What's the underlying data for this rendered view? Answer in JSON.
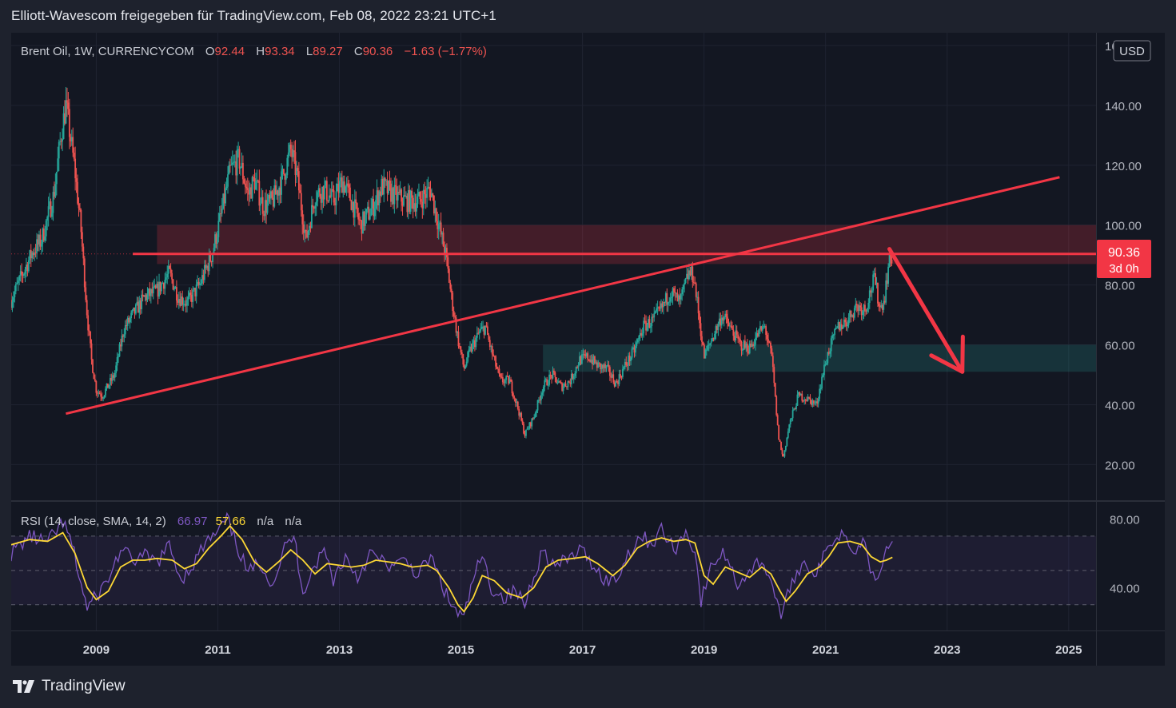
{
  "caption": "Elliott-Wavescom freigegeben für TradingView.com, Feb 08, 2022 23:21 UTC+1",
  "brand": {
    "name": "TradingView",
    "icon": "tradingview-logo-icon"
  },
  "legend": {
    "symbol": "Brent Oil, 1W, CURRENCYCOM",
    "o_label": "O",
    "o_value": "92.44",
    "h_label": "H",
    "h_value": "93.34",
    "l_label": "L",
    "l_value": "89.27",
    "c_label": "C",
    "c_value": "90.36",
    "change": "−1.63 (−1.77%)"
  },
  "currency_button": "USD",
  "price_badge": {
    "price": "90.36",
    "countdown": "3d 0h",
    "value": 90.36
  },
  "rsi_legend": {
    "name": "RSI (14, close, SMA, 14, 2)",
    "rsi_value": "66.97",
    "sma_value": "57.66",
    "extra1": "n/a",
    "extra2": "n/a"
  },
  "colors": {
    "background": "#131722",
    "up": "#26a69a",
    "down": "#ef5350",
    "drawing": "#f23645",
    "rsi": "#7e57c2",
    "rsi_sma": "#fdd835",
    "resistance_zone": "#f23645",
    "support_zone": "#26a69a"
  },
  "chart_data": [
    {
      "type": "candlestick",
      "title": "Brent Oil, 1W, CURRENCYCOM",
      "x_range": [
        2007.6,
        2025.45
      ],
      "ylim": [
        0,
        165
      ],
      "y_ticks": [
        "20.00",
        "40.00",
        "60.00",
        "80.00",
        "100.00",
        "120.00",
        "140.00",
        "160.00"
      ],
      "y_tick_values": [
        20,
        40,
        60,
        80,
        100,
        120,
        140,
        160
      ],
      "x_ticks": [
        "2009",
        "2011",
        "2013",
        "2015",
        "2017",
        "2019",
        "2021",
        "2023",
        "2025"
      ],
      "x_tick_values": [
        2009,
        2011,
        2013,
        2015,
        2017,
        2019,
        2021,
        2023,
        2025
      ],
      "close_path": [
        [
          2007.6,
          75
        ],
        [
          2007.75,
          82
        ],
        [
          2007.95,
          91
        ],
        [
          2008.1,
          95
        ],
        [
          2008.3,
          110
        ],
        [
          2008.42,
          130
        ],
        [
          2008.5,
          140
        ],
        [
          2008.55,
          133
        ],
        [
          2008.65,
          118
        ],
        [
          2008.75,
          98
        ],
        [
          2008.85,
          70
        ],
        [
          2008.92,
          55
        ],
        [
          2009.0,
          45
        ],
        [
          2009.1,
          43
        ],
        [
          2009.3,
          50
        ],
        [
          2009.45,
          65
        ],
        [
          2009.6,
          70
        ],
        [
          2009.8,
          76
        ],
        [
          2010.0,
          78
        ],
        [
          2010.2,
          84
        ],
        [
          2010.35,
          76
        ],
        [
          2010.5,
          74
        ],
        [
          2010.7,
          80
        ],
        [
          2010.9,
          90
        ],
        [
          2011.05,
          103
        ],
        [
          2011.2,
          118
        ],
        [
          2011.35,
          122
        ],
        [
          2011.5,
          110
        ],
        [
          2011.6,
          115
        ],
        [
          2011.75,
          106
        ],
        [
          2011.9,
          108
        ],
        [
          2012.05,
          115
        ],
        [
          2012.2,
          125
        ],
        [
          2012.3,
          117
        ],
        [
          2012.45,
          95
        ],
        [
          2012.6,
          110
        ],
        [
          2012.75,
          112
        ],
        [
          2012.9,
          108
        ],
        [
          2013.05,
          115
        ],
        [
          2013.2,
          108
        ],
        [
          2013.35,
          100
        ],
        [
          2013.55,
          106
        ],
        [
          2013.7,
          113
        ],
        [
          2013.9,
          110
        ],
        [
          2014.1,
          108
        ],
        [
          2014.3,
          108
        ],
        [
          2014.5,
          112
        ],
        [
          2014.6,
          103
        ],
        [
          2014.75,
          90
        ],
        [
          2014.85,
          75
        ],
        [
          2014.95,
          62
        ],
        [
          2015.05,
          52
        ],
        [
          2015.15,
          58
        ],
        [
          2015.3,
          64
        ],
        [
          2015.4,
          66
        ],
        [
          2015.5,
          58
        ],
        [
          2015.65,
          48
        ],
        [
          2015.8,
          48
        ],
        [
          2015.95,
          38
        ],
        [
          2016.05,
          30
        ],
        [
          2016.2,
          36
        ],
        [
          2016.35,
          46
        ],
        [
          2016.5,
          50
        ],
        [
          2016.65,
          46
        ],
        [
          2016.8,
          48
        ],
        [
          2016.95,
          55
        ],
        [
          2017.1,
          56
        ],
        [
          2017.25,
          53
        ],
        [
          2017.4,
          52
        ],
        [
          2017.55,
          47
        ],
        [
          2017.7,
          53
        ],
        [
          2017.85,
          58
        ],
        [
          2018.0,
          66
        ],
        [
          2018.15,
          68
        ],
        [
          2018.3,
          72
        ],
        [
          2018.45,
          78
        ],
        [
          2018.6,
          74
        ],
        [
          2018.75,
          84
        ],
        [
          2018.83,
          83
        ],
        [
          2018.9,
          72
        ],
        [
          2019.0,
          56
        ],
        [
          2019.15,
          63
        ],
        [
          2019.3,
          70
        ],
        [
          2019.45,
          65
        ],
        [
          2019.6,
          60
        ],
        [
          2019.75,
          59
        ],
        [
          2019.9,
          64
        ],
        [
          2020.0,
          66
        ],
        [
          2020.12,
          55
        ],
        [
          2020.22,
          30
        ],
        [
          2020.3,
          22
        ],
        [
          2020.4,
          33
        ],
        [
          2020.55,
          43
        ],
        [
          2020.7,
          42
        ],
        [
          2020.85,
          40
        ],
        [
          2020.95,
          50
        ],
        [
          2021.05,
          58
        ],
        [
          2021.2,
          66
        ],
        [
          2021.35,
          68
        ],
        [
          2021.5,
          73
        ],
        [
          2021.65,
          72
        ],
        [
          2021.8,
          82
        ],
        [
          2021.9,
          72
        ],
        [
          2021.97,
          76
        ],
        [
          2022.03,
          86
        ],
        [
          2022.1,
          90.36
        ]
      ],
      "horizontal_line": {
        "price": 90.36,
        "from": 2009.6,
        "to": 2025.45
      },
      "resistance_zone": {
        "from": 2010.0,
        "to": 2025.45,
        "low": 87,
        "high": 100
      },
      "support_zone": {
        "from": 2016.35,
        "to": 2025.45,
        "low": 51,
        "high": 60
      },
      "trend_line": {
        "from": [
          2008.5,
          37
        ],
        "to": [
          2024.85,
          116
        ]
      },
      "arrow": {
        "from": [
          2022.05,
          92
        ],
        "to": [
          2023.25,
          51
        ]
      }
    },
    {
      "type": "line",
      "title": "RSI (14, close, SMA, 14, 2)",
      "ylim": [
        15,
        90
      ],
      "y_ticks": [
        "40.00",
        "80.00"
      ],
      "y_tick_values": [
        40,
        80
      ],
      "levels": [
        70,
        50,
        30
      ],
      "series": [
        {
          "name": "RSI",
          "color": "#7e57c2",
          "points": [
            [
              2007.6,
              60
            ],
            [
              2007.9,
              70
            ],
            [
              2008.2,
              66
            ],
            [
              2008.45,
              78
            ],
            [
              2008.6,
              65
            ],
            [
              2008.75,
              42
            ],
            [
              2008.85,
              28
            ],
            [
              2009.0,
              35
            ],
            [
              2009.2,
              45
            ],
            [
              2009.4,
              62
            ],
            [
              2009.6,
              56
            ],
            [
              2009.8,
              58
            ],
            [
              2010.0,
              55
            ],
            [
              2010.2,
              64
            ],
            [
              2010.4,
              45
            ],
            [
              2010.6,
              54
            ],
            [
              2010.8,
              66
            ],
            [
              2011.0,
              72
            ],
            [
              2011.15,
              80
            ],
            [
              2011.3,
              66
            ],
            [
              2011.5,
              48
            ],
            [
              2011.7,
              55
            ],
            [
              2011.9,
              42
            ],
            [
              2012.1,
              63
            ],
            [
              2012.25,
              70
            ],
            [
              2012.4,
              38
            ],
            [
              2012.55,
              50
            ],
            [
              2012.75,
              62
            ],
            [
              2012.9,
              45
            ],
            [
              2013.1,
              58
            ],
            [
              2013.3,
              46
            ],
            [
              2013.5,
              60
            ],
            [
              2013.7,
              55
            ],
            [
              2013.9,
              52
            ],
            [
              2014.1,
              56
            ],
            [
              2014.3,
              47
            ],
            [
              2014.5,
              58
            ],
            [
              2014.65,
              45
            ],
            [
              2014.8,
              32
            ],
            [
              2014.95,
              25
            ],
            [
              2015.05,
              22
            ],
            [
              2015.2,
              45
            ],
            [
              2015.35,
              58
            ],
            [
              2015.5,
              40
            ],
            [
              2015.7,
              34
            ],
            [
              2015.9,
              38
            ],
            [
              2016.05,
              30
            ],
            [
              2016.2,
              48
            ],
            [
              2016.35,
              62
            ],
            [
              2016.55,
              52
            ],
            [
              2016.75,
              56
            ],
            [
              2016.95,
              62
            ],
            [
              2017.15,
              55
            ],
            [
              2017.35,
              45
            ],
            [
              2017.55,
              44
            ],
            [
              2017.75,
              60
            ],
            [
              2017.95,
              70
            ],
            [
              2018.15,
              66
            ],
            [
              2018.3,
              74
            ],
            [
              2018.5,
              62
            ],
            [
              2018.7,
              72
            ],
            [
              2018.85,
              62
            ],
            [
              2018.95,
              32
            ],
            [
              2019.15,
              55
            ],
            [
              2019.35,
              60
            ],
            [
              2019.55,
              42
            ],
            [
              2019.75,
              50
            ],
            [
              2019.95,
              56
            ],
            [
              2020.1,
              45
            ],
            [
              2020.2,
              30
            ],
            [
              2020.3,
              24
            ],
            [
              2020.45,
              45
            ],
            [
              2020.65,
              55
            ],
            [
              2020.85,
              48
            ],
            [
              2021.0,
              60
            ],
            [
              2021.15,
              70
            ],
            [
              2021.3,
              72
            ],
            [
              2021.5,
              62
            ],
            [
              2021.65,
              68
            ],
            [
              2021.78,
              45
            ],
            [
              2021.9,
              52
            ],
            [
              2022.0,
              64
            ],
            [
              2022.1,
              66.97
            ]
          ]
        },
        {
          "name": "SMA",
          "color": "#fdd835",
          "points": [
            [
              2007.6,
              65
            ],
            [
              2007.9,
              68
            ],
            [
              2008.2,
              67
            ],
            [
              2008.45,
              72
            ],
            [
              2008.65,
              60
            ],
            [
              2008.85,
              40
            ],
            [
              2009.0,
              33
            ],
            [
              2009.2,
              38
            ],
            [
              2009.4,
              52
            ],
            [
              2009.6,
              56
            ],
            [
              2009.8,
              56
            ],
            [
              2010.0,
              57
            ],
            [
              2010.25,
              56
            ],
            [
              2010.45,
              51
            ],
            [
              2010.65,
              54
            ],
            [
              2010.85,
              63
            ],
            [
              2011.05,
              70
            ],
            [
              2011.2,
              76
            ],
            [
              2011.4,
              68
            ],
            [
              2011.6,
              55
            ],
            [
              2011.8,
              49
            ],
            [
              2012.0,
              55
            ],
            [
              2012.2,
              62
            ],
            [
              2012.4,
              56
            ],
            [
              2012.6,
              48
            ],
            [
              2012.8,
              54
            ],
            [
              2013.0,
              53
            ],
            [
              2013.2,
              52
            ],
            [
              2013.4,
              53
            ],
            [
              2013.6,
              56
            ],
            [
              2013.8,
              55
            ],
            [
              2014.0,
              54
            ],
            [
              2014.2,
              52
            ],
            [
              2014.45,
              53
            ],
            [
              2014.6,
              50
            ],
            [
              2014.8,
              40
            ],
            [
              2014.95,
              30
            ],
            [
              2015.05,
              26
            ],
            [
              2015.2,
              34
            ],
            [
              2015.35,
              47
            ],
            [
              2015.55,
              44
            ],
            [
              2015.75,
              37
            ],
            [
              2016.0,
              34
            ],
            [
              2016.2,
              40
            ],
            [
              2016.4,
              52
            ],
            [
              2016.6,
              56
            ],
            [
              2016.85,
              57
            ],
            [
              2017.05,
              58
            ],
            [
              2017.25,
              54
            ],
            [
              2017.5,
              47
            ],
            [
              2017.7,
              53
            ],
            [
              2017.9,
              63
            ],
            [
              2018.1,
              67
            ],
            [
              2018.3,
              69
            ],
            [
              2018.5,
              67
            ],
            [
              2018.7,
              68
            ],
            [
              2018.85,
              66
            ],
            [
              2019.0,
              47
            ],
            [
              2019.15,
              42
            ],
            [
              2019.35,
              52
            ],
            [
              2019.55,
              49
            ],
            [
              2019.75,
              46
            ],
            [
              2019.95,
              52
            ],
            [
              2020.1,
              48
            ],
            [
              2020.25,
              38
            ],
            [
              2020.35,
              32
            ],
            [
              2020.5,
              38
            ],
            [
              2020.7,
              48
            ],
            [
              2020.9,
              52
            ],
            [
              2021.05,
              58
            ],
            [
              2021.2,
              66
            ],
            [
              2021.4,
              67
            ],
            [
              2021.6,
              65
            ],
            [
              2021.75,
              58
            ],
            [
              2021.9,
              55
            ],
            [
              2022.0,
              56
            ],
            [
              2022.1,
              57.66
            ]
          ]
        }
      ]
    }
  ]
}
